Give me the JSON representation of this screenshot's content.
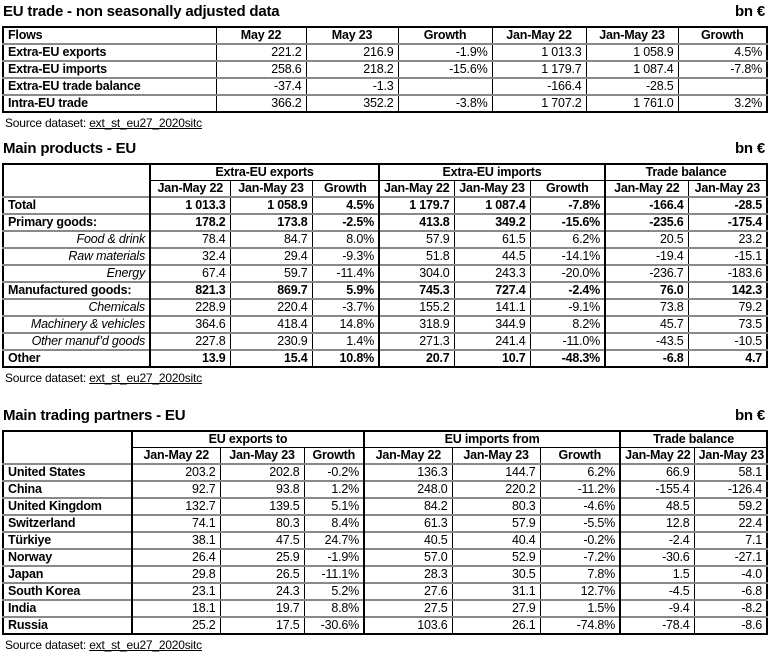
{
  "unit": "bn €",
  "source": {
    "label": "Source dataset:",
    "dataset": "ext_st_eu27_2020sitc"
  },
  "trade": {
    "title": "EU trade - non seasonally adjusted data",
    "headers": [
      "Flows",
      "May 22",
      "May 23",
      "Growth",
      "Jan-May 22",
      "Jan-May 23",
      "Growth"
    ],
    "rows": [
      {
        "label": "Extra-EU exports",
        "values": [
          "221.2",
          "216.9",
          "-1.9%",
          "1 013.3",
          "1 058.9",
          "4.5%"
        ]
      },
      {
        "label": "Extra-EU imports",
        "values": [
          "258.6",
          "218.2",
          "-15.6%",
          "1 179.7",
          "1 087.4",
          "-7.8%"
        ]
      },
      {
        "label": "Extra-EU trade balance",
        "values": [
          "-37.4",
          "-1.3",
          "",
          "-166.4",
          "-28.5",
          ""
        ]
      },
      {
        "label": "Intra-EU trade",
        "values": [
          "366.2",
          "352.2",
          "-3.8%",
          "1 707.2",
          "1 761.0",
          "3.2%"
        ]
      }
    ]
  },
  "products": {
    "title": "Main products - EU",
    "groups": [
      "Extra-EU exports",
      "Extra-EU imports",
      "Trade balance"
    ],
    "subheaders": [
      "Jan-May 22",
      "Jan-May 23",
      "Growth",
      "Jan-May 22",
      "Jan-May 23",
      "Growth",
      "Jan-May 22",
      "Jan-May 23"
    ],
    "rows": [
      {
        "label": "Total",
        "variant": "bold",
        "values": [
          "1 013.3",
          "1 058.9",
          "4.5%",
          "1 179.7",
          "1 087.4",
          "-7.8%",
          "-166.4",
          "-28.5"
        ]
      },
      {
        "label": "Primary goods:",
        "variant": "bold",
        "values": [
          "178.2",
          "173.8",
          "-2.5%",
          "413.8",
          "349.2",
          "-15.6%",
          "-235.6",
          "-175.4"
        ]
      },
      {
        "label": "Food & drink",
        "variant": "italic",
        "values": [
          "78.4",
          "84.7",
          "8.0%",
          "57.9",
          "61.5",
          "6.2%",
          "20.5",
          "23.2"
        ]
      },
      {
        "label": "Raw materials",
        "variant": "italic",
        "values": [
          "32.4",
          "29.4",
          "-9.3%",
          "51.8",
          "44.5",
          "-14.1%",
          "-19.4",
          "-15.1"
        ]
      },
      {
        "label": "Energy",
        "variant": "italic",
        "values": [
          "67.4",
          "59.7",
          "-11.4%",
          "304.0",
          "243.3",
          "-20.0%",
          "-236.7",
          "-183.6"
        ]
      },
      {
        "label": "Manufactured goods:",
        "variant": "bold",
        "values": [
          "821.3",
          "869.7",
          "5.9%",
          "745.3",
          "727.4",
          "-2.4%",
          "76.0",
          "142.3"
        ]
      },
      {
        "label": "Chemicals",
        "variant": "italic",
        "values": [
          "228.9",
          "220.4",
          "-3.7%",
          "155.2",
          "141.1",
          "-9.1%",
          "73.8",
          "79.2"
        ]
      },
      {
        "label": "Machinery & vehicles",
        "variant": "italic",
        "values": [
          "364.6",
          "418.4",
          "14.8%",
          "318.9",
          "344.9",
          "8.2%",
          "45.7",
          "73.5"
        ]
      },
      {
        "label": "Other manuf’d goods",
        "variant": "italic",
        "values": [
          "227.8",
          "230.9",
          "1.4%",
          "271.3",
          "241.4",
          "-11.0%",
          "-43.5",
          "-10.5"
        ]
      },
      {
        "label": "Other",
        "variant": "bold",
        "values": [
          "13.9",
          "15.4",
          "10.8%",
          "20.7",
          "10.7",
          "-48.3%",
          "-6.8",
          "4.7"
        ]
      }
    ]
  },
  "partners": {
    "title": "Main trading partners - EU",
    "groups": [
      "EU exports to",
      "EU imports from",
      "Trade balance"
    ],
    "subheaders": [
      "Jan-May 22",
      "Jan-May 23",
      "Growth",
      "Jan-May 22",
      "Jan-May 23",
      "Growth",
      "Jan-May 22",
      "Jan-May 23"
    ],
    "rows": [
      {
        "label": "United States",
        "values": [
          "203.2",
          "202.8",
          "-0.2%",
          "136.3",
          "144.7",
          "6.2%",
          "66.9",
          "58.1"
        ]
      },
      {
        "label": "China",
        "values": [
          "92.7",
          "93.8",
          "1.2%",
          "248.0",
          "220.2",
          "-11.2%",
          "-155.4",
          "-126.4"
        ]
      },
      {
        "label": "United Kingdom",
        "values": [
          "132.7",
          "139.5",
          "5.1%",
          "84.2",
          "80.3",
          "-4.6%",
          "48.5",
          "59.2"
        ]
      },
      {
        "label": "Switzerland",
        "values": [
          "74.1",
          "80.3",
          "8.4%",
          "61.3",
          "57.9",
          "-5.5%",
          "12.8",
          "22.4"
        ]
      },
      {
        "label": "Türkiye",
        "values": [
          "38.1",
          "47.5",
          "24.7%",
          "40.5",
          "40.4",
          "-0.2%",
          "-2.4",
          "7.1"
        ]
      },
      {
        "label": "Norway",
        "values": [
          "26.4",
          "25.9",
          "-1.9%",
          "57.0",
          "52.9",
          "-7.2%",
          "-30.6",
          "-27.1"
        ]
      },
      {
        "label": "Japan",
        "values": [
          "29.8",
          "26.5",
          "-11.1%",
          "28.3",
          "30.5",
          "7.8%",
          "1.5",
          "-4.0"
        ]
      },
      {
        "label": "South Korea",
        "values": [
          "23.1",
          "24.3",
          "5.2%",
          "27.6",
          "31.1",
          "12.7%",
          "-4.5",
          "-6.8"
        ]
      },
      {
        "label": "India",
        "values": [
          "18.1",
          "19.7",
          "8.8%",
          "27.5",
          "27.9",
          "1.5%",
          "-9.4",
          "-8.2"
        ]
      },
      {
        "label": "Russia",
        "values": [
          "25.2",
          "17.5",
          "-30.6%",
          "103.6",
          "26.1",
          "-74.8%",
          "-78.4",
          "-8.6"
        ]
      }
    ]
  }
}
